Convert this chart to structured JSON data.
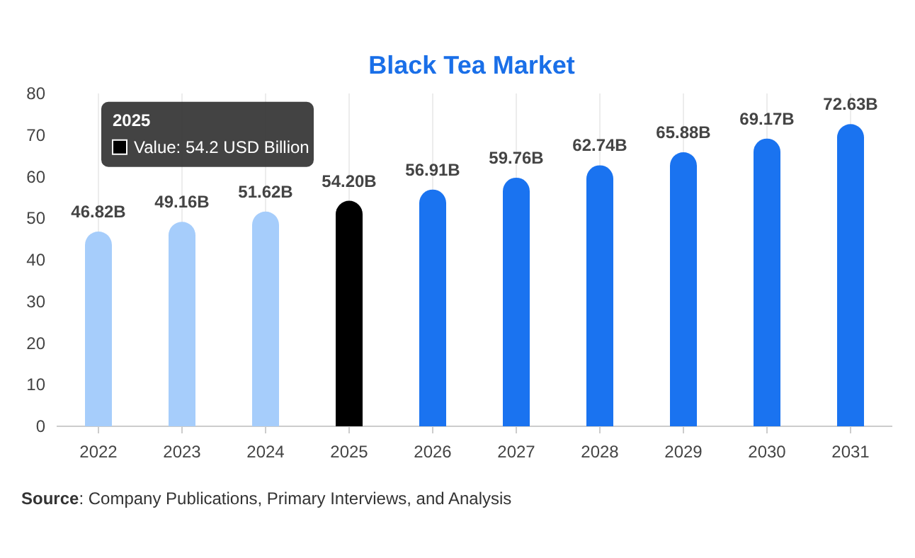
{
  "chart_data": {
    "type": "bar",
    "title": "Black Tea Market",
    "categories": [
      "2022",
      "2023",
      "2024",
      "2025",
      "2026",
      "2027",
      "2028",
      "2029",
      "2030",
      "2031"
    ],
    "values": [
      46.82,
      49.16,
      51.62,
      54.2,
      56.91,
      59.76,
      62.74,
      65.88,
      69.17,
      72.63
    ],
    "colors": [
      "#a6cdfb",
      "#a6cdfb",
      "#a6cdfb",
      "#000000",
      "#1a73f0",
      "#1a73f0",
      "#1a73f0",
      "#1a73f0",
      "#1a73f0",
      "#1a73f0"
    ],
    "value_labels": [
      "46.82B",
      "49.16B",
      "51.62B",
      "54.20B",
      "56.91B",
      "59.76B",
      "62.74B",
      "65.88B",
      "69.17B",
      "72.63B"
    ],
    "ylim": [
      0,
      80
    ],
    "yticks": [
      0,
      10,
      20,
      30,
      40,
      50,
      60,
      70,
      80
    ],
    "grid": "x",
    "annotations": [
      "2025",
      "Value: 54.2 USD Billion",
      "Source: Company Publications, Primary Interviews, and Analysis"
    ]
  }
}
